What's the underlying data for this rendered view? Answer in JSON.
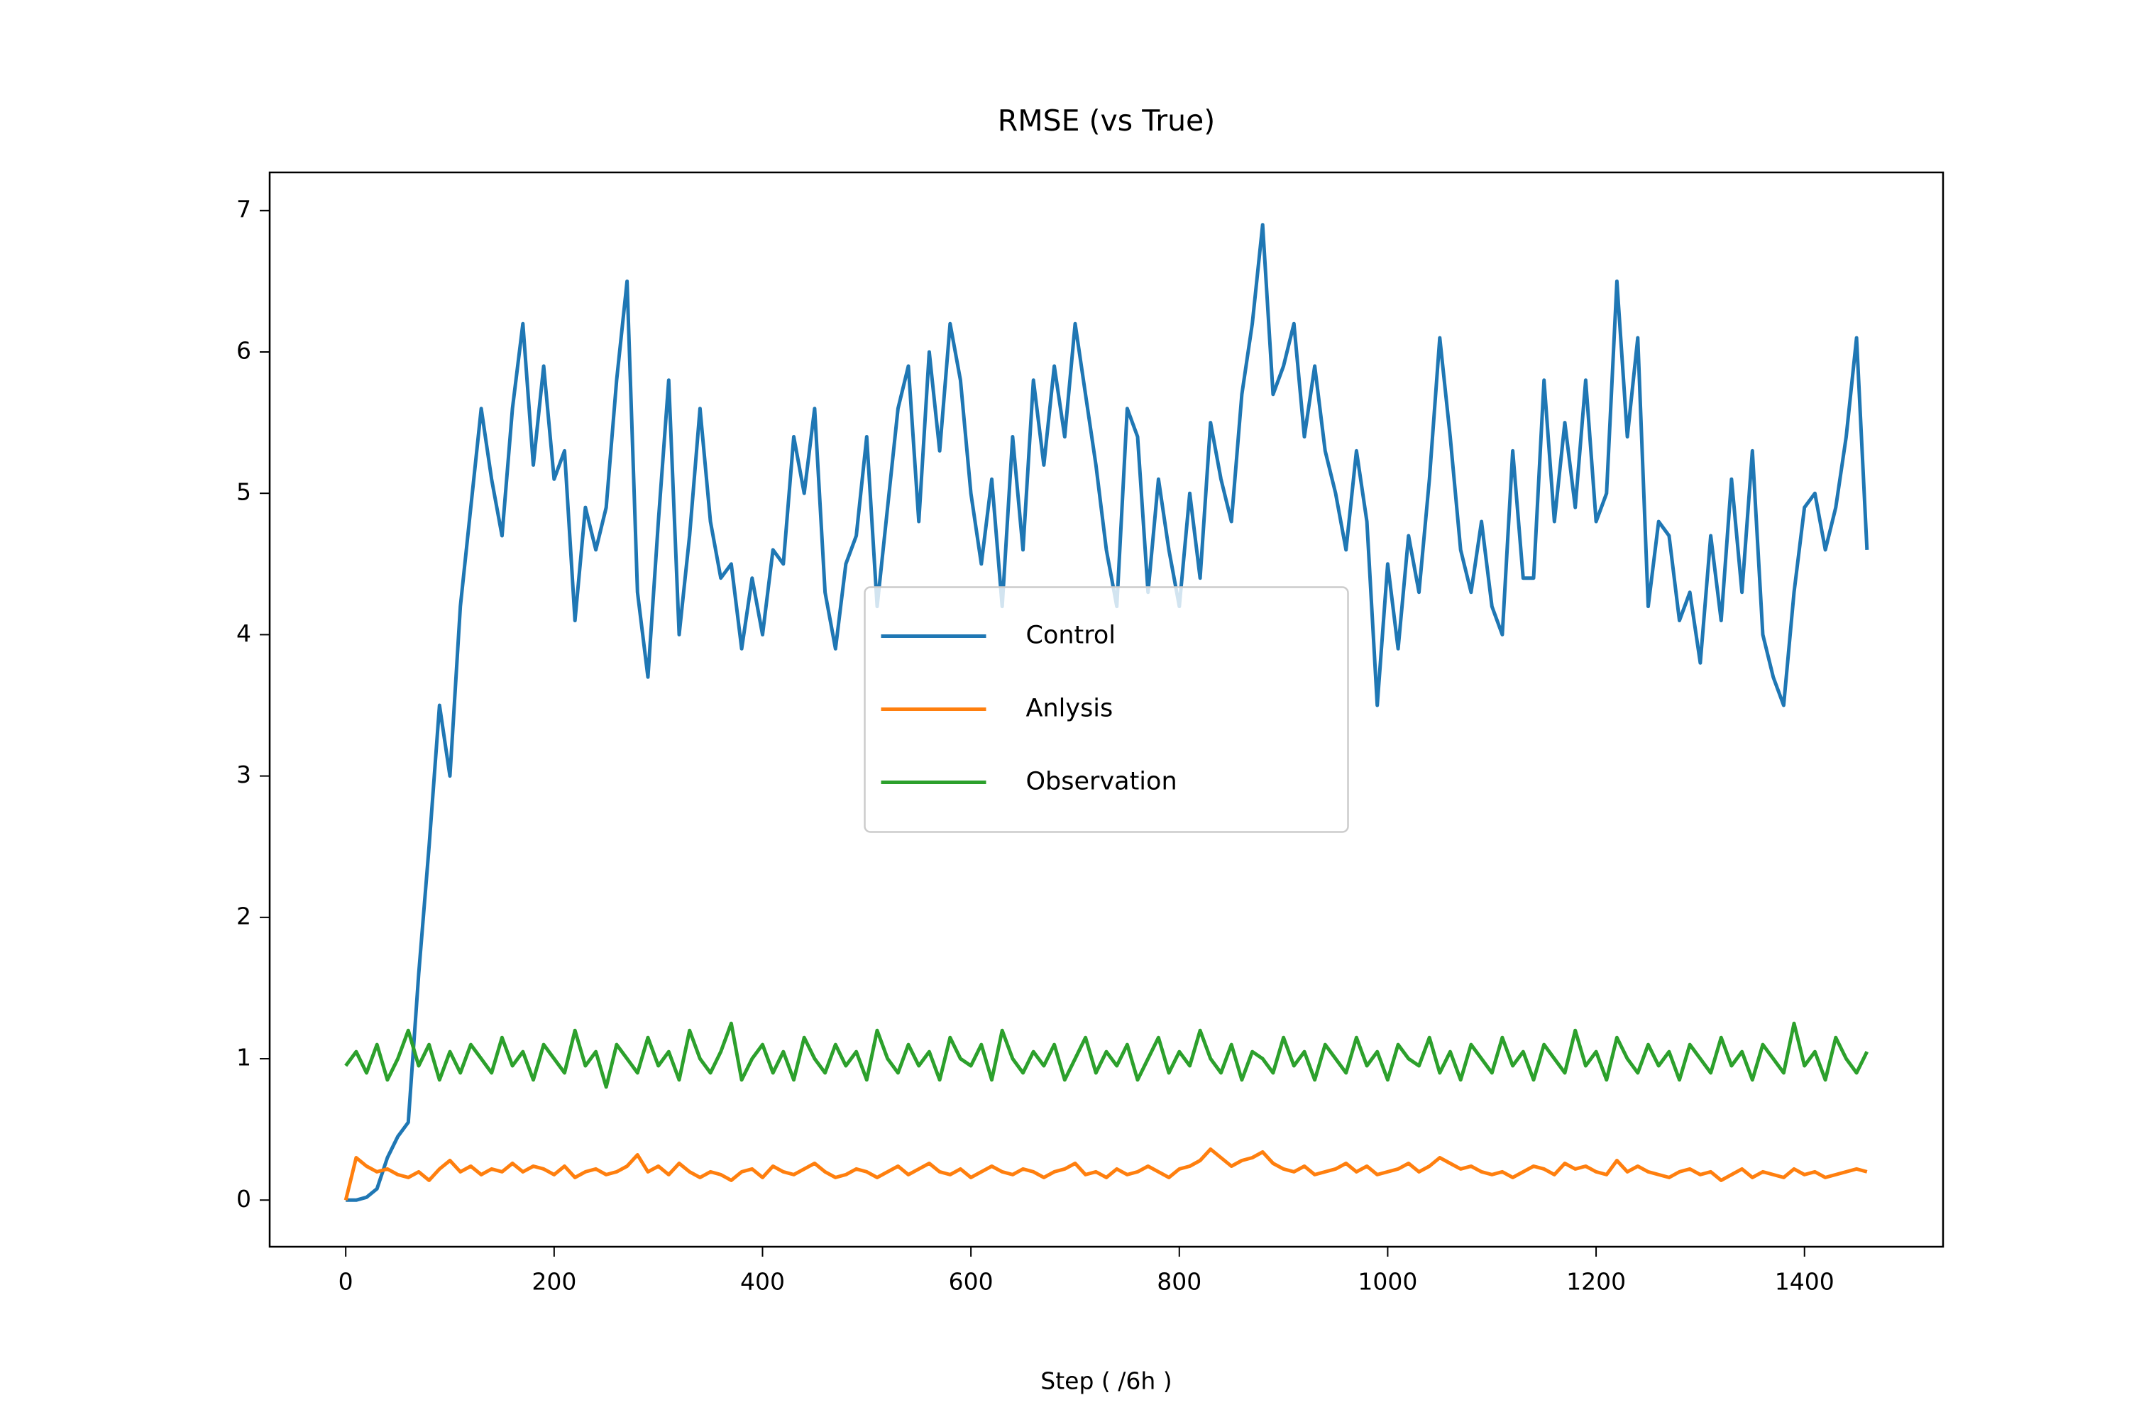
{
  "chart_data": {
    "type": "line",
    "title": "RMSE (vs True)",
    "x_label": "Step ( /6h )",
    "x": [
      0,
      10,
      20,
      30,
      40,
      50,
      60,
      70,
      80,
      90,
      100,
      110,
      120,
      130,
      140,
      150,
      160,
      170,
      180,
      190,
      200,
      210,
      220,
      230,
      240,
      250,
      260,
      270,
      280,
      290,
      300,
      310,
      320,
      330,
      340,
      350,
      360,
      370,
      380,
      390,
      400,
      410,
      420,
      430,
      440,
      450,
      460,
      470,
      480,
      490,
      500,
      510,
      520,
      530,
      540,
      550,
      560,
      570,
      580,
      590,
      600,
      610,
      620,
      630,
      640,
      650,
      660,
      670,
      680,
      690,
      700,
      710,
      720,
      730,
      740,
      750,
      760,
      770,
      780,
      790,
      800,
      810,
      820,
      830,
      840,
      850,
      860,
      870,
      880,
      890,
      900,
      910,
      920,
      930,
      940,
      950,
      960,
      970,
      980,
      990,
      1000,
      1010,
      1020,
      1030,
      1040,
      1050,
      1060,
      1070,
      1080,
      1090,
      1100,
      1110,
      1120,
      1130,
      1140,
      1150,
      1160,
      1170,
      1180,
      1190,
      1200,
      1210,
      1220,
      1230,
      1240,
      1250,
      1260,
      1270,
      1280,
      1290,
      1300,
      1310,
      1320,
      1330,
      1340,
      1350,
      1360,
      1370,
      1380,
      1390,
      1400,
      1410,
      1420,
      1430,
      1440,
      1450,
      1460
    ],
    "series": [
      {
        "name": "Control",
        "color": "#1f77b4",
        "values": [
          0,
          0,
          0.02,
          0.08,
          0.3,
          0.45,
          0.55,
          1.6,
          2.5,
          3.5,
          3.0,
          4.2,
          4.9,
          5.6,
          5.1,
          4.7,
          5.6,
          6.2,
          5.2,
          5.9,
          5.1,
          5.3,
          4.1,
          4.9,
          4.6,
          4.9,
          5.8,
          6.5,
          4.3,
          3.7,
          4.8,
          5.8,
          4.0,
          4.7,
          5.6,
          4.8,
          4.4,
          4.5,
          3.9,
          4.4,
          4.0,
          4.6,
          4.5,
          5.4,
          5.0,
          5.6,
          4.3,
          3.9,
          4.5,
          4.7,
          5.4,
          4.2,
          4.9,
          5.6,
          5.9,
          4.8,
          6.0,
          5.3,
          6.2,
          5.8,
          5.0,
          4.5,
          5.1,
          4.2,
          5.4,
          4.6,
          5.8,
          5.2,
          5.9,
          5.4,
          6.2,
          5.7,
          5.2,
          4.6,
          4.2,
          5.6,
          5.4,
          4.3,
          5.1,
          4.6,
          4.2,
          5.0,
          4.4,
          5.5,
          5.1,
          4.8,
          5.7,
          6.2,
          6.9,
          5.7,
          5.9,
          6.2,
          5.4,
          5.9,
          5.3,
          5.0,
          4.6,
          5.3,
          4.8,
          3.5,
          4.5,
          3.9,
          4.7,
          4.3,
          5.1,
          6.1,
          5.4,
          4.6,
          4.3,
          4.8,
          4.2,
          4.0,
          5.3,
          4.4,
          4.4,
          5.8,
          4.8,
          5.5,
          4.9,
          5.8,
          4.8,
          5.0,
          6.5,
          5.4,
          6.1,
          4.2,
          4.8,
          4.7,
          4.1,
          4.3,
          3.8,
          4.7,
          4.1,
          5.1,
          4.3,
          5.3,
          4.0,
          3.7,
          3.5,
          4.3,
          4.9,
          5.0,
          4.6,
          4.9,
          5.4,
          6.1,
          4.6
        ]
      },
      {
        "name": "Anlysis",
        "color": "#ff7f0e",
        "values": [
          0,
          0.3,
          0.24,
          0.2,
          0.22,
          0.18,
          0.16,
          0.2,
          0.14,
          0.22,
          0.28,
          0.2,
          0.24,
          0.18,
          0.22,
          0.2,
          0.26,
          0.2,
          0.24,
          0.22,
          0.18,
          0.24,
          0.16,
          0.2,
          0.22,
          0.18,
          0.2,
          0.24,
          0.32,
          0.2,
          0.24,
          0.18,
          0.26,
          0.2,
          0.16,
          0.2,
          0.18,
          0.14,
          0.2,
          0.22,
          0.16,
          0.24,
          0.2,
          0.18,
          0.22,
          0.26,
          0.2,
          0.16,
          0.18,
          0.22,
          0.2,
          0.16,
          0.2,
          0.24,
          0.18,
          0.22,
          0.26,
          0.2,
          0.18,
          0.22,
          0.16,
          0.2,
          0.24,
          0.2,
          0.18,
          0.22,
          0.2,
          0.16,
          0.2,
          0.22,
          0.26,
          0.18,
          0.2,
          0.16,
          0.22,
          0.18,
          0.2,
          0.24,
          0.2,
          0.16,
          0.22,
          0.24,
          0.28,
          0.36,
          0.3,
          0.24,
          0.28,
          0.3,
          0.34,
          0.26,
          0.22,
          0.2,
          0.24,
          0.18,
          0.2,
          0.22,
          0.26,
          0.2,
          0.24,
          0.18,
          0.2,
          0.22,
          0.26,
          0.2,
          0.24,
          0.3,
          0.26,
          0.22,
          0.24,
          0.2,
          0.18,
          0.2,
          0.16,
          0.2,
          0.24,
          0.22,
          0.18,
          0.26,
          0.22,
          0.24,
          0.2,
          0.18,
          0.28,
          0.2,
          0.24,
          0.2,
          0.18,
          0.16,
          0.2,
          0.22,
          0.18,
          0.2,
          0.14,
          0.18,
          0.22,
          0.16,
          0.2,
          0.18,
          0.16,
          0.22,
          0.18,
          0.2,
          0.16,
          0.18,
          0.2,
          0.22,
          0.2
        ]
      },
      {
        "name": "Observation",
        "color": "#2ca02c",
        "values": [
          0.95,
          1.05,
          0.9,
          1.1,
          0.85,
          1.0,
          1.2,
          0.95,
          1.1,
          0.85,
          1.05,
          0.9,
          1.1,
          1.0,
          0.9,
          1.15,
          0.95,
          1.05,
          0.85,
          1.1,
          1.0,
          0.9,
          1.2,
          0.95,
          1.05,
          0.8,
          1.1,
          1.0,
          0.9,
          1.15,
          0.95,
          1.05,
          0.85,
          1.2,
          1.0,
          0.9,
          1.05,
          1.25,
          0.85,
          1.0,
          1.1,
          0.9,
          1.05,
          0.85,
          1.15,
          1.0,
          0.9,
          1.1,
          0.95,
          1.05,
          0.85,
          1.2,
          1.0,
          0.9,
          1.1,
          0.95,
          1.05,
          0.85,
          1.15,
          1.0,
          0.95,
          1.1,
          0.85,
          1.2,
          1.0,
          0.9,
          1.05,
          0.95,
          1.1,
          0.85,
          1.0,
          1.15,
          0.9,
          1.05,
          0.95,
          1.1,
          0.85,
          1.0,
          1.15,
          0.9,
          1.05,
          0.95,
          1.2,
          1.0,
          0.9,
          1.1,
          0.85,
          1.05,
          1.0,
          0.9,
          1.15,
          0.95,
          1.05,
          0.85,
          1.1,
          1.0,
          0.9,
          1.15,
          0.95,
          1.05,
          0.85,
          1.1,
          1.0,
          0.95,
          1.15,
          0.9,
          1.05,
          0.85,
          1.1,
          1.0,
          0.9,
          1.15,
          0.95,
          1.05,
          0.85,
          1.1,
          1.0,
          0.9,
          1.2,
          0.95,
          1.05,
          0.85,
          1.15,
          1.0,
          0.9,
          1.1,
          0.95,
          1.05,
          0.85,
          1.1,
          1.0,
          0.9,
          1.15,
          0.95,
          1.05,
          0.85,
          1.1,
          1.0,
          0.9,
          1.25,
          0.95,
          1.05,
          0.85,
          1.15,
          1.0,
          0.9,
          1.05
        ]
      }
    ],
    "xlim": [
      -73,
      1533
    ],
    "ylim": [
      -0.33,
      7.27
    ],
    "xticks": [
      0,
      200,
      400,
      600,
      800,
      1000,
      1200,
      1400
    ],
    "yticks": [
      0,
      1,
      2,
      3,
      4,
      5,
      6,
      7
    ],
    "legend": "center",
    "grid": false
  }
}
